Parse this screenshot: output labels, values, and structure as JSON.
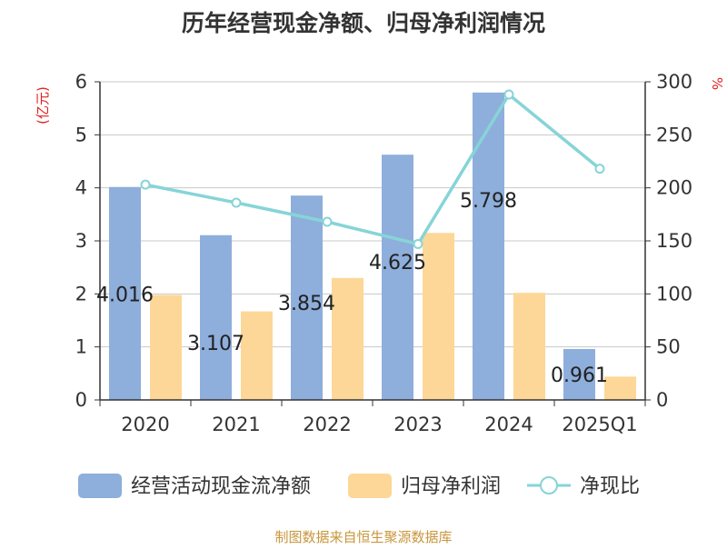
{
  "chart_data": {
    "type": "bar",
    "title": "历年经营现金净额、归母净利润情况",
    "y_left_unit": "(亿元)",
    "y_right_unit": "%",
    "categories": [
      "2020",
      "2021",
      "2022",
      "2023",
      "2024",
      "2025Q1"
    ],
    "series": [
      {
        "name": "经营活动现金流净额",
        "type": "bar",
        "axis": "left",
        "color": "#8eaedb",
        "values": [
          4.016,
          3.107,
          3.854,
          4.625,
          5.798,
          0.961
        ],
        "labels": [
          "4.016",
          "3.107",
          "3.854",
          "4.625",
          "5.798",
          "0.961"
        ]
      },
      {
        "name": "归母净利润",
        "type": "bar",
        "axis": "left",
        "color": "#fdd797",
        "values": [
          1.98,
          1.67,
          2.3,
          3.15,
          2.02,
          0.44
        ]
      },
      {
        "name": "净现比",
        "type": "line",
        "axis": "right",
        "color": "#86d4d8",
        "values": [
          203,
          186,
          168,
          147,
          288,
          218
        ]
      }
    ],
    "y_left_ticks": [
      "0",
      "1",
      "2",
      "3",
      "4",
      "5",
      "6"
    ],
    "y_left_range": [
      0,
      6
    ],
    "y_right_ticks": [
      "0",
      "50",
      "100",
      "150",
      "200",
      "250",
      "300"
    ],
    "y_right_range": [
      0,
      300
    ],
    "grid": true,
    "legend_position": "bottom",
    "source": "制图数据来自恒生聚源数据库"
  }
}
